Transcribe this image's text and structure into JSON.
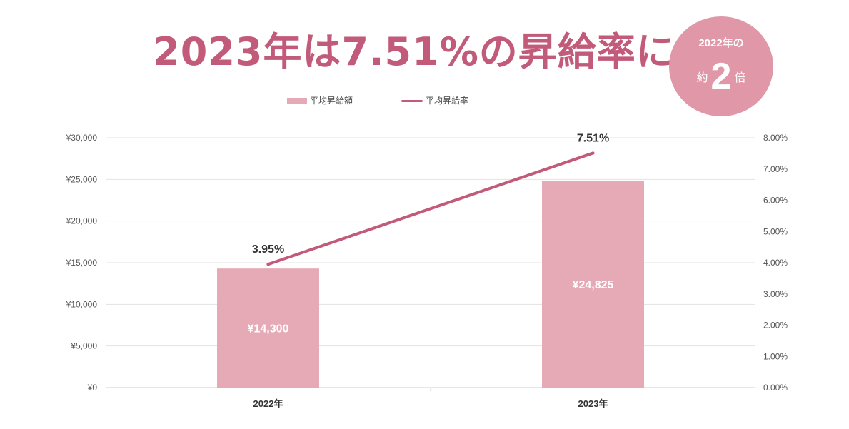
{
  "header": {
    "headline": "2023年は7.51%の昇給率に",
    "badge_line1": "2022年の",
    "badge_prefix": "約",
    "badge_number": "2",
    "badge_suffix": "倍"
  },
  "legend": {
    "bar_label": "平均昇給額",
    "line_label": "平均昇給率"
  },
  "colors": {
    "bar": "#e5aab5",
    "line": "#c25a7a",
    "badge": "#e098a8",
    "headline": "#c25a7a"
  },
  "chart_data": {
    "type": "bar",
    "categories": [
      "2022年",
      "2023年"
    ],
    "series": [
      {
        "name": "平均昇給額",
        "type": "bar",
        "axis": "left",
        "values": [
          14300,
          24825
        ],
        "labels": [
          "¥14,300",
          "¥24,825"
        ]
      },
      {
        "name": "平均昇給率",
        "type": "line",
        "axis": "right",
        "values": [
          3.95,
          7.51
        ],
        "labels": [
          "3.95%",
          "7.51%"
        ]
      }
    ],
    "y_left": {
      "min": 0,
      "max": 30000,
      "ticks": [
        "¥0",
        "¥5,000",
        "¥10,000",
        "¥15,000",
        "¥20,000",
        "¥25,000",
        "¥30,000"
      ]
    },
    "y_right": {
      "min": 0,
      "max": 8,
      "ticks": [
        "0.00%",
        "1.00%",
        "2.00%",
        "3.00%",
        "4.00%",
        "5.00%",
        "6.00%",
        "7.00%",
        "8.00%"
      ]
    },
    "grid": true,
    "legend_position": "top"
  }
}
